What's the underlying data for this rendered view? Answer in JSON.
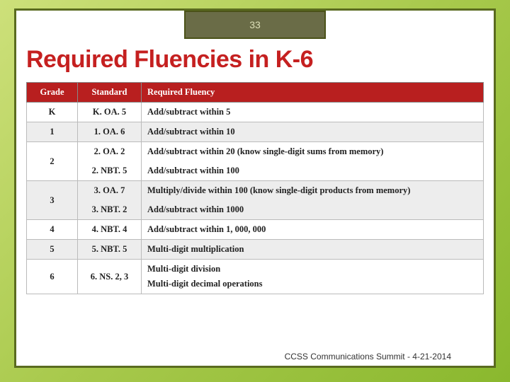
{
  "slide_number": "33",
  "title": "Required Fluencies in K-6",
  "headers": {
    "grade": "Grade",
    "standard": "Standard",
    "fluency": "Required Fluency"
  },
  "rows": [
    {
      "grade": "K",
      "cells": [
        {
          "standard": "K. OA. 5",
          "fluency": "Add/subtract within 5"
        }
      ]
    },
    {
      "grade": "1",
      "cells": [
        {
          "standard": "1. OA. 6",
          "fluency": "Add/subtract within 10"
        }
      ]
    },
    {
      "grade": "2",
      "cells": [
        {
          "standard": "2. OA. 2",
          "fluency": "Add/subtract within 20 (know single-digit sums from memory)"
        },
        {
          "standard": "2. NBT. 5",
          "fluency": "Add/subtract within 100"
        }
      ]
    },
    {
      "grade": "3",
      "cells": [
        {
          "standard": "3. OA. 7",
          "fluency": "Multiply/divide within 100 (know single-digit products from memory)"
        },
        {
          "standard": "3. NBT. 2",
          "fluency": "Add/subtract within 1000"
        }
      ]
    },
    {
      "grade": "4",
      "cells": [
        {
          "standard": "4. NBT. 4",
          "fluency": "Add/subtract within 1, 000, 000"
        }
      ]
    },
    {
      "grade": "5",
      "cells": [
        {
          "standard": "5. NBT. 5",
          "fluency": "Multi-digit multiplication"
        }
      ]
    },
    {
      "grade": "6",
      "cells": [
        {
          "standard": "6. NS. 2, 3",
          "fluency": "Multi-digit division\nMulti-digit decimal operations"
        }
      ]
    }
  ],
  "footer": "CCSS Communications Summit - 4-21-2014",
  "colors": {
    "header_bg": "#b81f1f",
    "title_color": "#c52020",
    "frame_border": "#5a6b1f",
    "row_alt": "#ededed"
  }
}
